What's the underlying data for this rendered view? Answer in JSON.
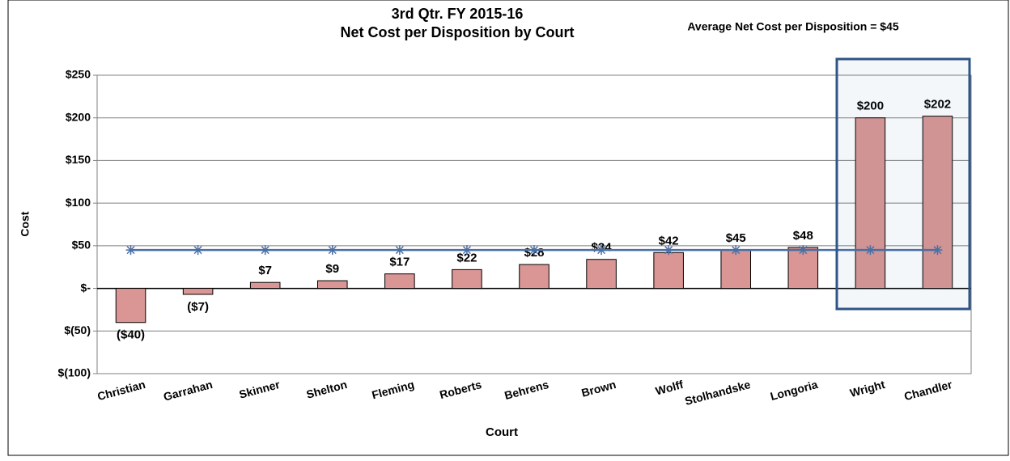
{
  "chart_data": {
    "type": "bar",
    "title": "3rd Qtr. FY 2015-16",
    "subtitle": "Net Cost per Disposition by Court",
    "annotation": "Average Net Cost per Disposition = $45",
    "x_label": "Court",
    "y_label": "Cost",
    "categories": [
      "Christian",
      "Garrahan",
      "Skinner",
      "Shelton",
      "Fleming",
      "Roberts",
      "Behrens",
      "Brown",
      "Wolff",
      "Stolhandske",
      "Longoria",
      "Wright",
      "Chandler"
    ],
    "series": [
      {
        "type": "bar",
        "color": "#d99694",
        "values": [
          -40,
          -7,
          7,
          9,
          17,
          22,
          28,
          34,
          42,
          45,
          48,
          200,
          202
        ],
        "value_labels": [
          "($40)",
          "($7)",
          "$7",
          "$9",
          "$17",
          "$22",
          "$28",
          "$34",
          "$42",
          "$45",
          "$48",
          "$200",
          "$202"
        ]
      },
      {
        "type": "line",
        "color": "#4a6fa5",
        "values": [
          45,
          45,
          45,
          45,
          45,
          45,
          45,
          45,
          45,
          45,
          45,
          45,
          45
        ]
      }
    ],
    "ylim": [
      -100,
      250
    ],
    "yticks": [
      {
        "value": -100,
        "label": "$(100)"
      },
      {
        "value": -50,
        "label": "$(50)"
      },
      {
        "value": 0,
        "label": "$-"
      },
      {
        "value": 50,
        "label": "$50"
      },
      {
        "value": 100,
        "label": "$100"
      },
      {
        "value": 150,
        "label": "$150"
      },
      {
        "value": 200,
        "label": "$200"
      },
      {
        "value": 250,
        "label": "$250"
      }
    ],
    "grid": true
  }
}
